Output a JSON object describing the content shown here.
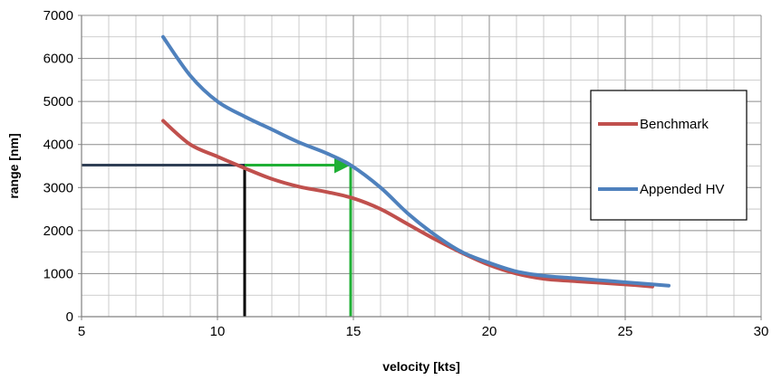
{
  "chart_data": {
    "type": "line",
    "title": "",
    "xlabel": "velocity [kts]",
    "ylabel": "range [nm]",
    "xlim": [
      5,
      30
    ],
    "ylim": [
      0,
      7000
    ],
    "x_ticks": [
      5,
      10,
      15,
      20,
      25,
      30
    ],
    "y_ticks": [
      0,
      1000,
      2000,
      3000,
      4000,
      5000,
      6000,
      7000
    ],
    "x_tick_labels": [
      "5",
      "10",
      "15",
      "20",
      "25",
      "30"
    ],
    "y_tick_labels": [
      "0",
      "1000",
      "2000",
      "3000",
      "4000",
      "5000",
      "6000",
      "7000"
    ],
    "x_minor_step": 1,
    "y_minor_step": 500,
    "grid": true,
    "legend_position": "right",
    "series": [
      {
        "name": "Benchmark",
        "color": "#C0504D",
        "points": [
          [
            8,
            4550
          ],
          [
            9,
            4000
          ],
          [
            10,
            3720
          ],
          [
            11,
            3450
          ],
          [
            12,
            3200
          ],
          [
            13,
            3020
          ],
          [
            14,
            2900
          ],
          [
            15,
            2750
          ],
          [
            16,
            2500
          ],
          [
            17,
            2150
          ],
          [
            18,
            1800
          ],
          [
            19,
            1480
          ],
          [
            20,
            1200
          ],
          [
            21,
            1000
          ],
          [
            22,
            880
          ],
          [
            23,
            830
          ],
          [
            24,
            790
          ],
          [
            25,
            750
          ],
          [
            26,
            700
          ]
        ]
      },
      {
        "name": "Appended HV",
        "color": "#4F81BD",
        "points": [
          [
            8,
            6500
          ],
          [
            9,
            5600
          ],
          [
            10,
            5000
          ],
          [
            11,
            4650
          ],
          [
            12,
            4350
          ],
          [
            13,
            4050
          ],
          [
            14,
            3800
          ],
          [
            14.9,
            3520
          ],
          [
            16,
            3000
          ],
          [
            17,
            2400
          ],
          [
            18,
            1900
          ],
          [
            19,
            1500
          ],
          [
            20,
            1250
          ],
          [
            21,
            1050
          ],
          [
            22,
            950
          ],
          [
            23,
            900
          ],
          [
            24,
            850
          ],
          [
            25,
            800
          ],
          [
            26.6,
            720
          ]
        ]
      }
    ],
    "annotations": [
      {
        "name": "benchmark-reference-horizontal",
        "color": "#2F3F55",
        "points": [
          [
            5,
            3520
          ],
          [
            11,
            3520
          ]
        ],
        "arrow": false
      },
      {
        "name": "benchmark-reference-vertical",
        "color": "#000000",
        "points": [
          [
            11,
            3520
          ],
          [
            11,
            0
          ]
        ],
        "arrow": false
      },
      {
        "name": "improvement-arrow",
        "color": "#1FAF35",
        "points": [
          [
            11,
            3520
          ],
          [
            14.9,
            3520
          ]
        ],
        "arrow": true
      },
      {
        "name": "appended-hv-reference-vertical",
        "color": "#1FAF35",
        "points": [
          [
            14.9,
            3520
          ],
          [
            14.9,
            0
          ]
        ],
        "arrow": false
      }
    ]
  }
}
